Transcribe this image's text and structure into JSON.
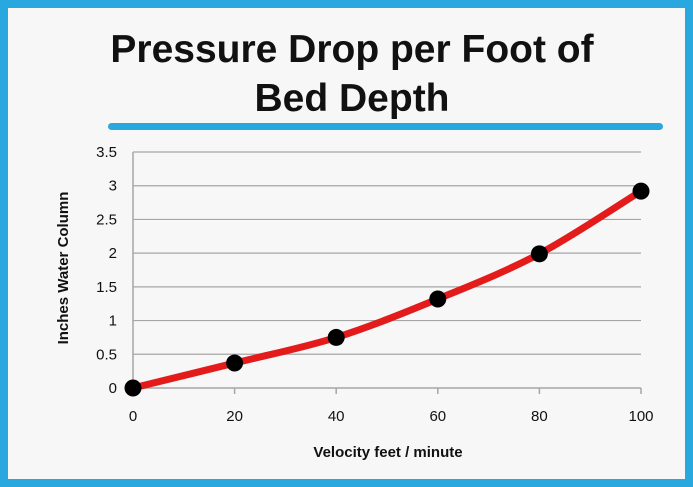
{
  "chart_data": {
    "type": "line",
    "title_lines": [
      "Pressure Drop per Foot of",
      "Bed Depth"
    ],
    "xlabel": "Velocity feet / minute",
    "ylabel": "Inches Water Column",
    "x": [
      0,
      20,
      40,
      60,
      80,
      100
    ],
    "series": [
      {
        "values": [
          0,
          0.37,
          0.75,
          1.32,
          1.99,
          2.92
        ]
      }
    ],
    "xlim": [
      0,
      100
    ],
    "ylim": [
      0,
      3.5
    ],
    "xticks": [
      0,
      20,
      40,
      60,
      80,
      100
    ],
    "yticks": [
      0,
      0.5,
      1,
      1.5,
      2,
      2.5,
      3,
      3.5
    ],
    "xtick_labels": [
      "0",
      "20",
      "40",
      "60",
      "80",
      "100"
    ],
    "ytick_labels": [
      "0",
      "0.5",
      "1",
      "1.5",
      "2",
      "2.5",
      "3",
      "3.5"
    ],
    "grid": "horizontal",
    "legend": "none",
    "colors": {
      "border": "#29a8e0",
      "underline": "#29a8e0",
      "line": "#e31b1b",
      "marker": "#000000",
      "grid": "#a6a6a6",
      "background": "#f7f7f7"
    }
  }
}
